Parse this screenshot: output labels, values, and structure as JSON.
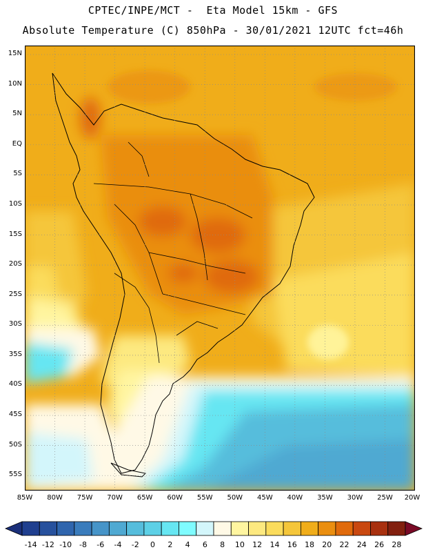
{
  "header": {
    "line1": "CPTEC/INPE/MCT -  Eta Model 15km - GFS",
    "line2": "Absolute Temperature (C) 850hPa - 30/01/2021 12UTC fct=46h"
  },
  "map": {
    "lat_labels": [
      "15N",
      "10N",
      "5N",
      "EQ",
      "5S",
      "10S",
      "15S",
      "20S",
      "25S",
      "30S",
      "35S",
      "40S",
      "45S",
      "50S",
      "55S"
    ],
    "lon_labels": [
      "85W",
      "80W",
      "75W",
      "70W",
      "65W",
      "60W",
      "55W",
      "50W",
      "45W",
      "40W",
      "35W",
      "30W",
      "25W",
      "20W"
    ],
    "lon_range": [
      -85,
      -20
    ],
    "lat_range": [
      -57.5,
      16.5
    ],
    "grid": "dotted",
    "field": "temperature 850hPa"
  },
  "colorbar": {
    "labels": [
      "-14",
      "-12",
      "-10",
      "-8",
      "-6",
      "-4",
      "-2",
      "0",
      "2",
      "4",
      "6",
      "8",
      "10",
      "12",
      "14",
      "16",
      "18",
      "20",
      "22",
      "24",
      "26",
      "28"
    ],
    "colors": [
      "#1f3f8f",
      "#27519d",
      "#2f65ad",
      "#3a7cbc",
      "#4694c8",
      "#4fa9d2",
      "#56bddc",
      "#5dd0e6",
      "#66e6f2",
      "#7ffcff",
      "#d3f6fb",
      "#fff9e6",
      "#fff5a0",
      "#fde980",
      "#fbdc5c",
      "#f5c63a",
      "#f0ad1a",
      "#ea8e10",
      "#e06a0c",
      "#c94810",
      "#a8300f",
      "#82200f"
    ],
    "under_color": "#1a2f7a",
    "over_color": "#7a0a26"
  }
}
